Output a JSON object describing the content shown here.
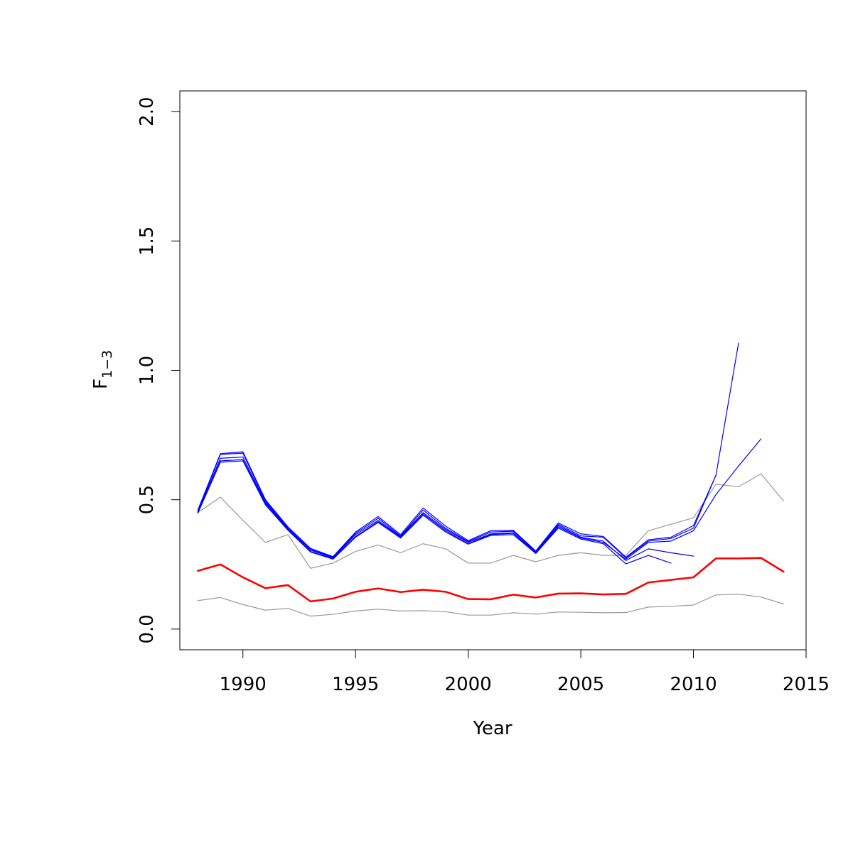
{
  "chart_data": {
    "type": "line",
    "title": "",
    "xlabel": "Year",
    "ylabel_main": "F",
    "ylabel_sub": "1−3",
    "xlim": [
      1987.2,
      2015.0
    ],
    "ylim": [
      -0.08,
      2.08
    ],
    "xticks": [
      1990,
      1995,
      2000,
      2005,
      2010,
      2015
    ],
    "yticks": [
      0.0,
      0.5,
      1.0,
      1.5,
      2.0
    ],
    "xtick_labels": [
      "1990",
      "1995",
      "2000",
      "2005",
      "2010",
      "2015"
    ],
    "ytick_labels": [
      "0.0",
      "0.5",
      "1.0",
      "1.5",
      "2.0"
    ],
    "grid": false,
    "legend": "none",
    "colors": {
      "estimate": "#ff0000",
      "bounds": "#999999",
      "retrospective": "#0000ff"
    },
    "series": [
      {
        "role": "upper-bound",
        "x": [
          1988,
          1989,
          1990,
          1991,
          1992,
          1993,
          1994,
          1995,
          1996,
          1997,
          1998,
          1999,
          2000,
          2001,
          2002,
          2003,
          2004,
          2005,
          2006,
          2007,
          2008,
          2009,
          2010,
          2011,
          2012,
          2013,
          2014
        ],
        "values": [
          0.45,
          0.51,
          0.42,
          0.335,
          0.365,
          0.235,
          0.255,
          0.3,
          0.325,
          0.295,
          0.33,
          0.31,
          0.255,
          0.255,
          0.285,
          0.26,
          0.285,
          0.295,
          0.285,
          0.285,
          0.38,
          0.405,
          0.43,
          0.56,
          0.55,
          0.6,
          0.495
        ]
      },
      {
        "role": "estimate",
        "x": [
          1988,
          1989,
          1990,
          1991,
          1992,
          1993,
          1994,
          1995,
          1996,
          1997,
          1998,
          1999,
          2000,
          2001,
          2002,
          2003,
          2004,
          2005,
          2006,
          2007,
          2008,
          2009,
          2010,
          2011,
          2012,
          2013,
          2014
        ],
        "values": [
          0.225,
          0.25,
          0.2,
          0.158,
          0.17,
          0.107,
          0.118,
          0.144,
          0.157,
          0.143,
          0.152,
          0.144,
          0.116,
          0.115,
          0.133,
          0.122,
          0.137,
          0.138,
          0.134,
          0.136,
          0.18,
          0.19,
          0.2,
          0.273,
          0.273,
          0.275,
          0.222
        ]
      },
      {
        "role": "lower-bound",
        "x": [
          1988,
          1989,
          1990,
          1991,
          1992,
          1993,
          1994,
          1995,
          1996,
          1997,
          1998,
          1999,
          2000,
          2001,
          2002,
          2003,
          2004,
          2005,
          2006,
          2007,
          2008,
          2009,
          2010,
          2011,
          2012,
          2013,
          2014
        ],
        "values": [
          0.11,
          0.122,
          0.095,
          0.073,
          0.08,
          0.05,
          0.057,
          0.07,
          0.077,
          0.07,
          0.071,
          0.067,
          0.054,
          0.054,
          0.063,
          0.058,
          0.066,
          0.065,
          0.063,
          0.064,
          0.085,
          0.088,
          0.093,
          0.132,
          0.135,
          0.124,
          0.097
        ]
      },
      {
        "role": "retrospective",
        "x": [
          1988,
          1989,
          1990,
          1991,
          1992,
          1993,
          1994,
          1995,
          1996,
          1997,
          1998,
          1999,
          2000,
          2001,
          2002,
          2003,
          2004,
          2005,
          2006,
          2007,
          2008,
          2009,
          2010,
          2011,
          2012,
          2013
        ],
        "values": [
          0.45,
          0.65,
          0.655,
          0.485,
          0.385,
          0.3,
          0.272,
          0.358,
          0.415,
          0.355,
          0.445,
          0.38,
          0.33,
          0.365,
          0.37,
          0.295,
          0.395,
          0.352,
          0.335,
          0.27,
          0.335,
          0.34,
          0.38,
          0.52,
          0.63,
          0.735
        ]
      },
      {
        "role": "retrospective",
        "x": [
          1988,
          1989,
          1990,
          1991,
          1992,
          1993,
          1994,
          1995,
          1996,
          1997,
          1998,
          1999,
          2000,
          2001,
          2002,
          2003,
          2004,
          2005,
          2006,
          2007,
          2008,
          2009,
          2010,
          2011,
          2012
        ],
        "values": [
          0.455,
          0.675,
          0.68,
          0.495,
          0.39,
          0.308,
          0.278,
          0.37,
          0.428,
          0.36,
          0.46,
          0.39,
          0.338,
          0.375,
          0.378,
          0.3,
          0.405,
          0.36,
          0.355,
          0.275,
          0.34,
          0.35,
          0.39,
          0.595,
          1.105
        ]
      },
      {
        "role": "retrospective",
        "x": [
          1988,
          1989,
          1990,
          1991,
          1992,
          1993,
          1994,
          1995,
          1996,
          1997,
          1998,
          1999,
          2000,
          2001,
          2002,
          2003,
          2004,
          2005,
          2006,
          2007,
          2008,
          2009,
          2010,
          2011
        ],
        "values": [
          0.46,
          0.678,
          0.685,
          0.5,
          0.395,
          0.312,
          0.28,
          0.375,
          0.435,
          0.365,
          0.468,
          0.398,
          0.342,
          0.38,
          0.382,
          0.302,
          0.41,
          0.368,
          0.358,
          0.278,
          0.345,
          0.355,
          0.4,
          0.595
        ]
      },
      {
        "role": "retrospective",
        "x": [
          1988,
          1989,
          1990,
          1991,
          1992,
          1993,
          1994,
          1995,
          1996,
          1997,
          1998,
          1999,
          2000,
          2001,
          2002,
          2003,
          2004,
          2005,
          2006,
          2007,
          2008,
          2009,
          2010
        ],
        "values": [
          0.452,
          0.66,
          0.665,
          0.49,
          0.388,
          0.305,
          0.275,
          0.365,
          0.42,
          0.358,
          0.45,
          0.385,
          0.335,
          0.368,
          0.372,
          0.298,
          0.4,
          0.355,
          0.34,
          0.265,
          0.31,
          0.295,
          0.282
        ]
      },
      {
        "role": "retrospective",
        "x": [
          1988,
          1989,
          1990,
          1991,
          1992,
          1993,
          1994,
          1995,
          1996,
          1997,
          1998,
          1999,
          2000,
          2001,
          2002,
          2003,
          2004,
          2005,
          2006,
          2007,
          2008,
          2009
        ],
        "values": [
          0.448,
          0.645,
          0.65,
          0.48,
          0.382,
          0.298,
          0.27,
          0.355,
          0.412,
          0.352,
          0.44,
          0.375,
          0.328,
          0.362,
          0.365,
          0.292,
          0.39,
          0.348,
          0.33,
          0.252,
          0.285,
          0.255
        ]
      }
    ]
  }
}
